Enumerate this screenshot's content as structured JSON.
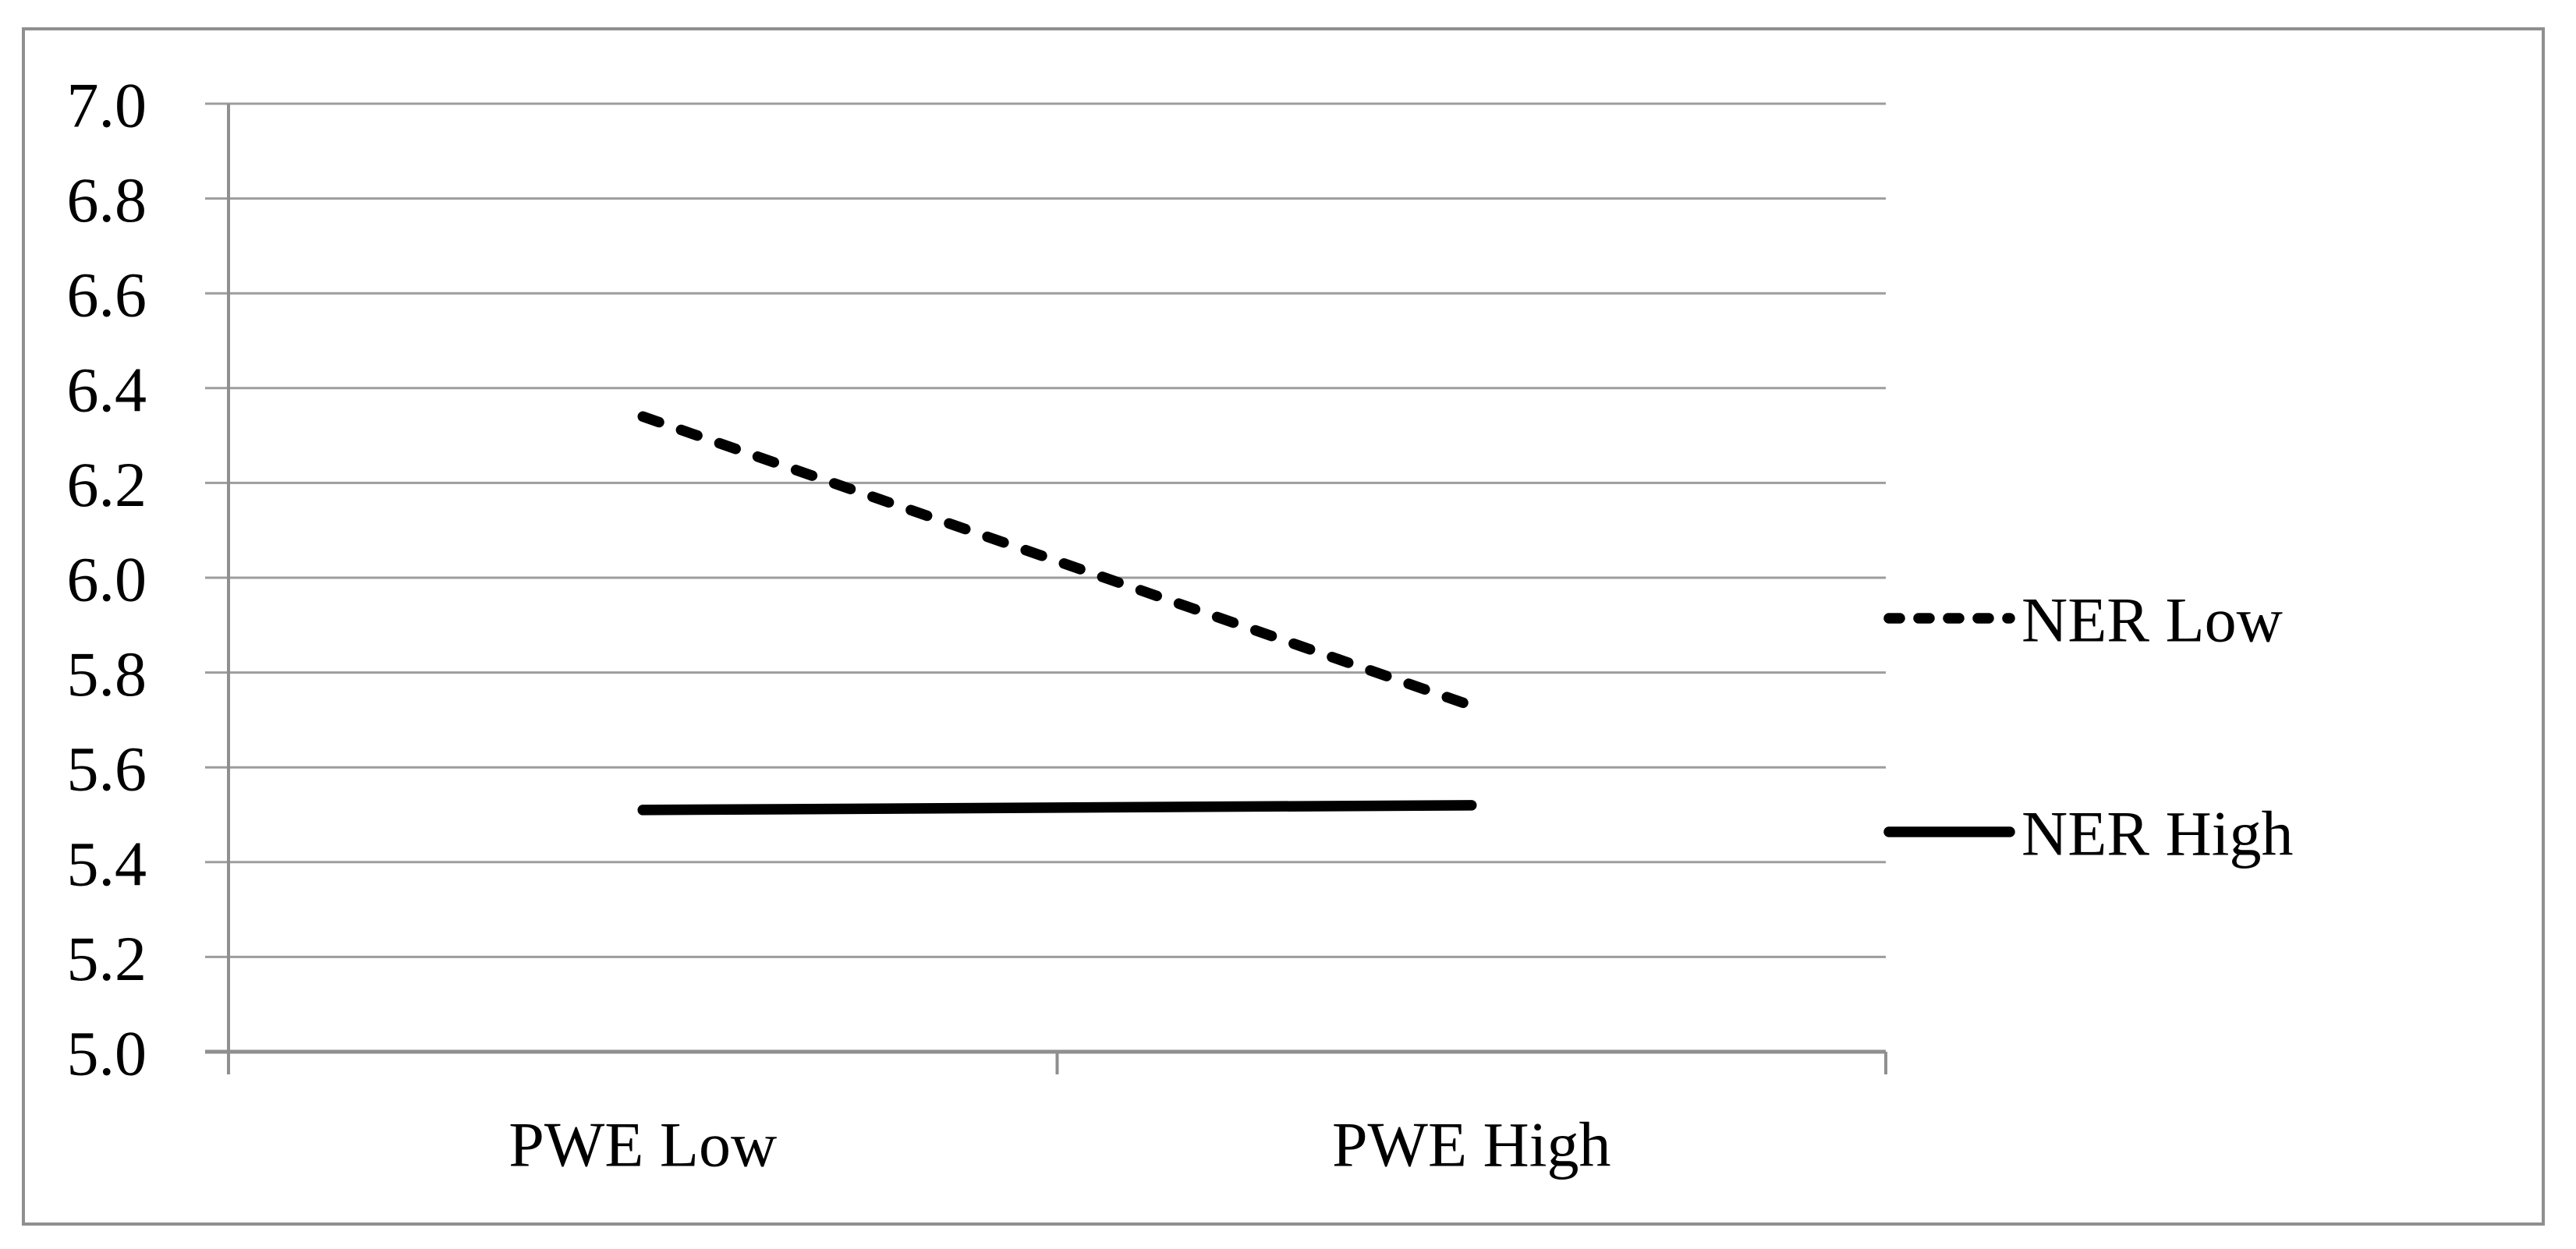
{
  "chart_data": {
    "type": "line",
    "title": "",
    "xlabel": "",
    "ylabel": "",
    "categories": [
      "PWE Low",
      "PWE High"
    ],
    "series": [
      {
        "name": "NER Low",
        "line_style": "dashed",
        "color": "#000000",
        "values": [
          6.34,
          5.73
        ]
      },
      {
        "name": "NER High",
        "line_style": "solid",
        "color": "#000000",
        "values": [
          5.51,
          5.52
        ]
      }
    ],
    "ylim": [
      5.0,
      7.0
    ],
    "ytick_step": 0.2,
    "ytick_labels": [
      "7.0",
      "6.8",
      "6.6",
      "6.4",
      "6.2",
      "6.0",
      "5.8",
      "5.6",
      "5.4",
      "5.2",
      "5.0"
    ],
    "grid": true,
    "legend_position": "right-middle",
    "colors": {
      "series_line": "#000000",
      "gridline": "#9d9d9d",
      "axis_line": "#8f8f8f",
      "frame_border": "#8f8f8f",
      "background": "#ffffff",
      "text": "#000000"
    }
  }
}
